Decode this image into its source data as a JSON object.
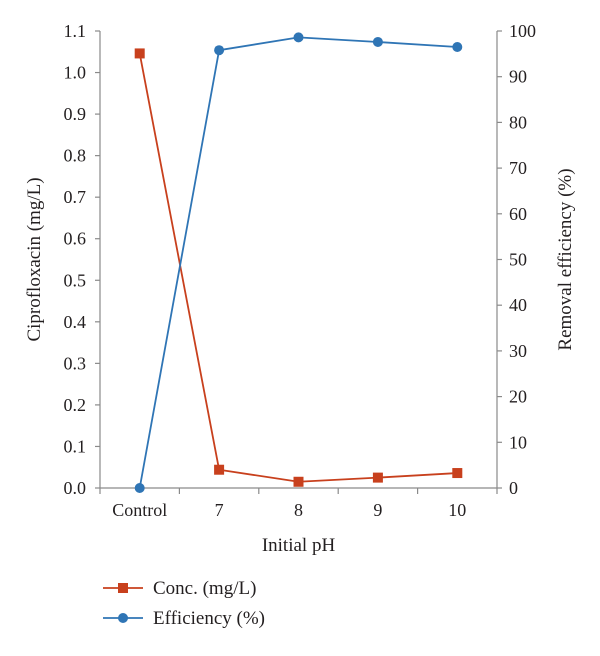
{
  "chart_data": {
    "type": "line",
    "xlabel": "Initial pH",
    "categories": [
      "Control",
      "7",
      "8",
      "9",
      "10"
    ],
    "y_left": {
      "label": "Ciprofloxacin (mg/L)",
      "lim": [
        0,
        1.1
      ],
      "ticks": [
        "0.0",
        "0.1",
        "0.2",
        "0.3",
        "0.4",
        "0.5",
        "0.6",
        "0.7",
        "0.8",
        "0.9",
        "1.0",
        "1.1"
      ]
    },
    "y_right": {
      "label": "Removal efficiency (%)",
      "lim": [
        0,
        100
      ],
      "ticks": [
        "0",
        "10",
        "20",
        "30",
        "40",
        "50",
        "60",
        "70",
        "80",
        "90",
        "100"
      ]
    },
    "grid": false,
    "legend_placement": "bottom-left",
    "series": [
      {
        "name": "Conc. (mg/L)",
        "axis": "left",
        "marker": "square",
        "color": "#c8401d",
        "values": [
          1.046,
          0.044,
          0.015,
          0.025,
          0.036
        ]
      },
      {
        "name": "Efficiency (%)",
        "axis": "right",
        "marker": "circle",
        "color": "#2f75b5",
        "values": [
          0,
          95.8,
          98.6,
          97.6,
          96.5
        ]
      }
    ]
  }
}
